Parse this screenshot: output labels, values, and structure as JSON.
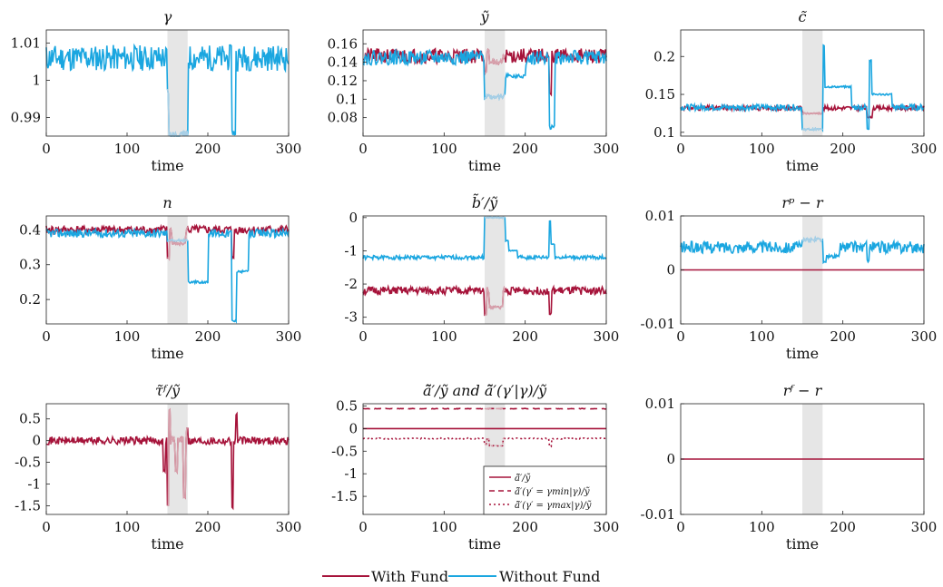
{
  "colors": {
    "with_fund": "#a6133a",
    "without_fund": "#1aa6e0",
    "shade": "#e6e6e6",
    "with_fund_in_shade": "#d7a1ac",
    "without_fund_in_shade": "#a9cfe6"
  },
  "figure_legend": {
    "with_fund": "With Fund",
    "without_fund": "Without Fund"
  },
  "chart_data": [
    {
      "type": "line",
      "title": "γ",
      "xlabel": "time",
      "xlim": [
        0,
        300
      ],
      "xticks": [
        0,
        100,
        200,
        300
      ],
      "ylim": [
        0.985,
        1.0135
      ],
      "yticks": [
        0.99,
        1,
        1.01
      ],
      "ytick_labels": [
        "0.99",
        "1",
        "1.01"
      ],
      "shade": [
        150,
        175
      ],
      "series": [
        {
          "name": "Without Fund",
          "color_key": "without_fund",
          "gen": {
            "seed": 11,
            "base": 1.006,
            "amp": 0.0035,
            "events": [
              [
                150,
                152,
                0.997
              ],
              [
                152,
                175,
                0.9855
              ],
              [
                230,
                234,
                0.986
              ]
            ]
          }
        }
      ]
    },
    {
      "type": "line",
      "title": "ỹ",
      "xlabel": "time",
      "xlim": [
        0,
        300
      ],
      "xticks": [
        0,
        100,
        200,
        300
      ],
      "ylim": [
        0.06,
        0.175
      ],
      "yticks": [
        0.08,
        0.1,
        0.12,
        0.14,
        0.16
      ],
      "ytick_labels": [
        "0.08",
        "0.1",
        "0.12",
        "0.14",
        "0.16"
      ],
      "shade": [
        150,
        175
      ],
      "series": [
        {
          "name": "With Fund",
          "color_key": "with_fund",
          "gen": {
            "seed": 21,
            "base": 0.147,
            "amp": 0.008,
            "events": [
              [
                150,
                152,
                0.128
              ],
              [
                156,
                172,
                0.14
              ],
              [
                230,
                232,
                0.105
              ]
            ]
          }
        },
        {
          "name": "Without Fund",
          "color_key": "without_fund",
          "gen": {
            "seed": 22,
            "base": 0.145,
            "amp": 0.008,
            "events": [
              [
                150,
                175,
                0.103
              ],
              [
                176,
                200,
                0.125
              ],
              [
                230,
                236,
                0.07
              ]
            ]
          }
        }
      ]
    },
    {
      "type": "line",
      "title": "c̃",
      "xlabel": "time",
      "xlim": [
        0,
        300
      ],
      "xticks": [
        0,
        100,
        200,
        300
      ],
      "ylim": [
        0.095,
        0.235
      ],
      "yticks": [
        0.1,
        0.15,
        0.2
      ],
      "ytick_labels": [
        "0.1",
        "0.15",
        "0.2"
      ],
      "shade": [
        150,
        175
      ],
      "series": [
        {
          "name": "With Fund",
          "color_key": "with_fund",
          "gen": {
            "seed": 31,
            "base": 0.132,
            "amp": 0.003,
            "events": [
              [
                150,
                175,
                0.125
              ],
              [
                230,
                236,
                0.12
              ]
            ]
          }
        },
        {
          "name": "Without Fund",
          "color_key": "without_fund",
          "gen": {
            "seed": 32,
            "base": 0.133,
            "amp": 0.004,
            "events": [
              [
                150,
                175,
                0.104
              ],
              [
                176,
                178,
                0.215
              ],
              [
                178,
                210,
                0.16
              ],
              [
                230,
                232,
                0.105
              ],
              [
                233,
                236,
                0.195
              ],
              [
                236,
                260,
                0.15
              ]
            ]
          }
        }
      ]
    },
    {
      "type": "line",
      "title": "n",
      "xlabel": "time",
      "xlim": [
        0,
        300
      ],
      "xticks": [
        0,
        100,
        200,
        300
      ],
      "ylim": [
        0.13,
        0.44
      ],
      "yticks": [
        0.2,
        0.3,
        0.4
      ],
      "ytick_labels": [
        "0.2",
        "0.3",
        "0.4"
      ],
      "shade": [
        150,
        175
      ],
      "series": [
        {
          "name": "With Fund",
          "color_key": "with_fund",
          "gen": {
            "seed": 41,
            "base": 0.4,
            "amp": 0.012,
            "events": [
              [
                150,
                152,
                0.32
              ],
              [
                156,
                172,
                0.36
              ],
              [
                230,
                232,
                0.32
              ]
            ]
          }
        },
        {
          "name": "Without Fund",
          "color_key": "without_fund",
          "gen": {
            "seed": 42,
            "base": 0.39,
            "amp": 0.012,
            "events": [
              [
                150,
                175,
                0.37
              ],
              [
                176,
                200,
                0.25
              ],
              [
                230,
                236,
                0.14
              ],
              [
                236,
                250,
                0.28
              ]
            ]
          }
        }
      ]
    },
    {
      "type": "line",
      "title": "b̃′/ỹ",
      "xlabel": "",
      "xlim": [
        0,
        300
      ],
      "xticks": [
        0,
        100,
        200,
        300
      ],
      "ylim": [
        -3.2,
        0.05
      ],
      "yticks": [
        -3,
        -2,
        -1,
        0
      ],
      "ytick_labels": [
        "-3",
        "-2",
        "-1",
        "0"
      ],
      "shade": [
        150,
        175
      ],
      "series": [
        {
          "name": "With Fund",
          "color_key": "with_fund",
          "gen": {
            "seed": 51,
            "base": -2.2,
            "amp": 0.12,
            "events": [
              [
                150,
                152,
                -2.9
              ],
              [
                156,
                172,
                -2.7
              ],
              [
                230,
                232,
                -2.9
              ]
            ]
          }
        },
        {
          "name": "Without Fund",
          "color_key": "without_fund",
          "gen": {
            "seed": 52,
            "base": -1.2,
            "amp": 0.06,
            "events": [
              [
                150,
                175,
                0.0
              ],
              [
                176,
                180,
                -0.7
              ],
              [
                180,
                190,
                -1.0
              ],
              [
                230,
                232,
                -0.1
              ],
              [
                232,
                236,
                -0.8
              ]
            ]
          }
        }
      ]
    },
    {
      "type": "line",
      "title": "rᵖ − r",
      "xlabel": "time",
      "xlim": [
        0,
        300
      ],
      "xticks": [
        0,
        100,
        200,
        300
      ],
      "ylim": [
        -0.01,
        0.01
      ],
      "yticks": [
        -0.01,
        0,
        0.01
      ],
      "ytick_labels": [
        "-0.01",
        "0",
        "0.01"
      ],
      "shade": [
        150,
        175
      ],
      "series": [
        {
          "name": "With Fund",
          "color_key": "with_fund",
          "constant": 0
        },
        {
          "name": "Without Fund",
          "color_key": "without_fund",
          "gen": {
            "seed": 62,
            "base": 0.0042,
            "amp": 0.0011,
            "events": [
              [
                150,
                175,
                0.0056
              ],
              [
                176,
                180,
                0.0013
              ],
              [
                180,
                195,
                0.0025
              ],
              [
                230,
                232,
                0.0018
              ]
            ]
          }
        }
      ]
    },
    {
      "type": "line",
      "title": "τ̃ᶠ/ỹ",
      "xlabel": "time",
      "xlim": [
        0,
        300
      ],
      "xticks": [
        0,
        100,
        200,
        300
      ],
      "ylim": [
        -1.7,
        0.85
      ],
      "yticks": [
        -1.5,
        -1,
        -0.5,
        0,
        0.5
      ],
      "ytick_labels": [
        "-1.5",
        "-1",
        "-0.5",
        "0",
        "0.5"
      ],
      "shade": [
        150,
        175
      ],
      "series": [
        {
          "name": "With Fund",
          "color_key": "with_fund",
          "gen": {
            "seed": 71,
            "base": 0.0,
            "amp": 0.09,
            "events": [
              [
                145,
                147,
                -0.7
              ],
              [
                150,
                151,
                -1.5
              ],
              [
                152,
                153,
                0.7
              ],
              [
                160,
                162,
                -0.7
              ],
              [
                170,
                172,
                -1.3
              ],
              [
                174,
                175,
                0.3
              ],
              [
                230,
                231,
                -1.55
              ],
              [
                235,
                236,
                0.6
              ]
            ]
          }
        }
      ]
    },
    {
      "type": "line",
      "title": "ã̃′/ỹ  and  ã̃′(γ′|γ)/ỹ",
      "xlabel": "time",
      "xlim": [
        0,
        300
      ],
      "xticks": [
        0,
        100,
        200,
        300
      ],
      "ylim": [
        -1.9,
        0.55
      ],
      "yticks": [
        -1.5,
        -1,
        -0.5,
        0,
        0.5
      ],
      "ytick_labels": [
        "-1.5",
        "-1",
        "-0.5",
        "0",
        "0.5"
      ],
      "shade": [
        150,
        175
      ],
      "legend": {
        "placement": "bottom-right",
        "entries": [
          "ã̃′/ỹ",
          "ã̃′(γ′ = γmin|γ)/ỹ",
          "ã̃′(γ′ = γmax|γ)/ỹ"
        ]
      },
      "series": [
        {
          "name": "ã̃′/ỹ",
          "color_key": "with_fund",
          "style": "solid",
          "constant": 0
        },
        {
          "name": "ã̃′(γ′ = γmin|γ)/ỹ",
          "color_key": "with_fund",
          "style": "dashed",
          "gen": {
            "seed": 82,
            "base": 0.44,
            "amp": 0.006,
            "events": []
          }
        },
        {
          "name": "ã̃′(γ′ = γmax|γ)/ỹ",
          "color_key": "with_fund",
          "style": "dotted",
          "gen": {
            "seed": 83,
            "base": -0.22,
            "amp": 0.012,
            "events": [
              [
                150,
                152,
                -0.35
              ],
              [
                156,
                172,
                -0.38
              ],
              [
                230,
                232,
                -0.4
              ]
            ]
          }
        }
      ]
    },
    {
      "type": "line",
      "title": "rᶠ − r",
      "xlabel": "time",
      "xlim": [
        0,
        300
      ],
      "xticks": [
        0,
        100,
        200,
        300
      ],
      "ylim": [
        -0.01,
        0.01
      ],
      "yticks": [
        -0.01,
        0,
        0.01
      ],
      "ytick_labels": [
        "-0.01",
        "0",
        "0.01"
      ],
      "shade": [
        150,
        175
      ],
      "series": [
        {
          "name": "With Fund",
          "color_key": "with_fund",
          "constant": 0
        }
      ]
    }
  ]
}
